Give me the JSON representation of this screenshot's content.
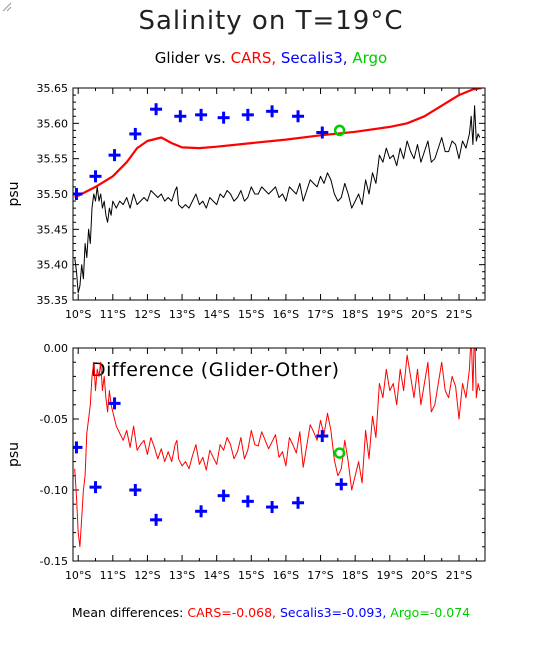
{
  "chart_data": [
    {
      "type": "line",
      "title": "Salinity on T=19°C",
      "legend": {
        "prefix": "Glider vs.",
        "entries": [
          {
            "name": "CARS",
            "color": "#ff0000"
          },
          {
            "name": "Secalis3",
            "color": "#0000ff"
          },
          {
            "name": "Argo",
            "color": "#00cc00"
          }
        ],
        "separator": ", "
      },
      "ylabel": "psu",
      "ylim": [
        35.35,
        35.65
      ],
      "yticks": [
        35.35,
        35.4,
        35.45,
        35.5,
        35.55,
        35.6,
        35.65
      ],
      "ytick_labels": [
        "35.35",
        "35.40",
        "35.45",
        "35.50",
        "35.55",
        "35.60",
        "35.65"
      ],
      "xlim": [
        9.85,
        21.75
      ],
      "xticks": [
        10,
        11,
        12,
        13,
        14,
        15,
        16,
        17,
        18,
        19,
        20,
        21
      ],
      "xtick_labels": [
        "10°S",
        "11°S",
        "12°S",
        "13°S",
        "14°S",
        "15°S",
        "16°S",
        "17°S",
        "18°S",
        "19°S",
        "20°S",
        "21°S"
      ],
      "series": [
        {
          "name": "Glider",
          "style": "line",
          "color": "#000000",
          "x": [
            9.9,
            9.95,
            10.0,
            10.05,
            10.1,
            10.15,
            10.2,
            10.25,
            10.3,
            10.35,
            10.4,
            10.45,
            10.5,
            10.55,
            10.6,
            10.65,
            10.7,
            10.75,
            10.8,
            10.85,
            10.9,
            10.95,
            11.0,
            11.1,
            11.2,
            11.3,
            11.4,
            11.5,
            11.6,
            11.7,
            11.8,
            11.9,
            12.0,
            12.1,
            12.2,
            12.3,
            12.4,
            12.5,
            12.6,
            12.7,
            12.8,
            12.85,
            12.9,
            13.0,
            13.1,
            13.2,
            13.3,
            13.4,
            13.5,
            13.6,
            13.7,
            13.8,
            13.9,
            14.0,
            14.1,
            14.2,
            14.3,
            14.4,
            14.5,
            14.6,
            14.7,
            14.8,
            14.9,
            15.0,
            15.1,
            15.2,
            15.3,
            15.4,
            15.5,
            15.6,
            15.7,
            15.8,
            15.9,
            16.0,
            16.1,
            16.2,
            16.3,
            16.4,
            16.5,
            16.6,
            16.7,
            16.8,
            16.9,
            17.0,
            17.1,
            17.2,
            17.3,
            17.4,
            17.5,
            17.6,
            17.7,
            17.8,
            17.9,
            18.0,
            18.1,
            18.2,
            18.3,
            18.4,
            18.5,
            18.6,
            18.7,
            18.8,
            18.9,
            19.0,
            19.1,
            19.2,
            19.3,
            19.4,
            19.5,
            19.6,
            19.7,
            19.8,
            19.9,
            20.0,
            20.1,
            20.2,
            20.3,
            20.4,
            20.5,
            20.6,
            20.7,
            20.8,
            20.9,
            21.0,
            21.1,
            21.2,
            21.3,
            21.35,
            21.4,
            21.45,
            21.5,
            21.55,
            21.6
          ],
          "y": [
            35.41,
            35.39,
            35.36,
            35.37,
            35.4,
            35.38,
            35.43,
            35.41,
            35.45,
            35.43,
            35.48,
            35.5,
            35.49,
            35.51,
            35.49,
            35.5,
            35.48,
            35.49,
            35.47,
            35.46,
            35.48,
            35.47,
            35.49,
            35.48,
            35.49,
            35.485,
            35.495,
            35.48,
            35.5,
            35.485,
            35.49,
            35.495,
            35.49,
            35.505,
            35.5,
            35.495,
            35.5,
            35.49,
            35.495,
            35.49,
            35.505,
            35.51,
            35.485,
            35.48,
            35.485,
            35.48,
            35.49,
            35.5,
            35.485,
            35.49,
            35.48,
            35.495,
            35.49,
            35.485,
            35.5,
            35.495,
            35.505,
            35.5,
            35.49,
            35.495,
            35.505,
            35.49,
            35.495,
            35.51,
            35.5,
            35.5,
            35.51,
            35.505,
            35.5,
            35.505,
            35.51,
            35.495,
            35.5,
            35.49,
            35.51,
            35.505,
            35.5,
            35.515,
            35.49,
            35.505,
            35.52,
            35.515,
            35.51,
            35.525,
            35.515,
            35.53,
            35.52,
            35.5,
            35.49,
            35.495,
            35.515,
            35.5,
            35.48,
            35.49,
            35.5,
            35.485,
            35.52,
            35.5,
            35.53,
            35.515,
            35.555,
            35.545,
            35.565,
            35.55,
            35.555,
            35.54,
            35.565,
            35.55,
            35.575,
            35.56,
            35.55,
            35.57,
            35.545,
            35.56,
            35.575,
            35.545,
            35.55,
            35.565,
            35.58,
            35.56,
            35.56,
            35.575,
            35.57,
            35.55,
            35.575,
            35.565,
            35.585,
            35.61,
            35.57,
            35.625,
            35.575,
            35.585,
            35.58
          ]
        },
        {
          "name": "CARS",
          "style": "line",
          "color": "#ff0000",
          "x": [
            9.9,
            10.5,
            11.0,
            11.4,
            11.7,
            12.0,
            12.4,
            12.7,
            13.0,
            13.5,
            14.0,
            15.0,
            16.0,
            17.0,
            18.0,
            19.0,
            19.5,
            20.0,
            20.5,
            21.0,
            21.4,
            21.65
          ],
          "y": [
            35.495,
            35.51,
            35.525,
            35.545,
            35.565,
            35.575,
            35.58,
            35.572,
            35.566,
            35.565,
            35.567,
            35.572,
            35.577,
            35.583,
            35.588,
            35.595,
            35.6,
            35.61,
            35.625,
            35.64,
            35.648,
            35.65
          ]
        },
        {
          "name": "Secalis3",
          "style": "marker",
          "marker": "plus",
          "color": "#0000ff",
          "x": [
            9.95,
            10.5,
            11.05,
            11.65,
            12.25,
            12.95,
            13.55,
            14.2,
            14.9,
            15.6,
            16.35,
            17.05
          ],
          "y": [
            35.5,
            35.525,
            35.555,
            35.585,
            35.62,
            35.61,
            35.612,
            35.608,
            35.612,
            35.617,
            35.61,
            35.587
          ]
        },
        {
          "name": "Argo",
          "style": "marker",
          "marker": "circle",
          "color": "#00cc00",
          "x": [
            17.55
          ],
          "y": [
            35.59
          ]
        }
      ]
    },
    {
      "type": "line",
      "annotation": "Difference (Glider-Other)",
      "ylabel": "psu",
      "ylim": [
        -0.15,
        0.0
      ],
      "yticks": [
        -0.15,
        -0.1,
        -0.05,
        0.0
      ],
      "ytick_labels": [
        "-0.15",
        "-0.10",
        "-0.05",
        "0.00"
      ],
      "xlim": [
        9.85,
        21.75
      ],
      "xticks": [
        10,
        11,
        12,
        13,
        14,
        15,
        16,
        17,
        18,
        19,
        20,
        21
      ],
      "xtick_labels": [
        "10°S",
        "11°S",
        "12°S",
        "13°S",
        "14°S",
        "15°S",
        "16°S",
        "17°S",
        "18°S",
        "19°S",
        "20°S",
        "21°S"
      ],
      "series": [
        {
          "name": "CARS",
          "style": "line",
          "color": "#ff0000",
          "x": [
            9.9,
            9.95,
            10.0,
            10.05,
            10.1,
            10.15,
            10.2,
            10.25,
            10.3,
            10.35,
            10.4,
            10.45,
            10.5,
            10.55,
            10.6,
            10.65,
            10.7,
            10.75,
            10.8,
            10.85,
            10.9,
            10.95,
            11.0,
            11.1,
            11.2,
            11.3,
            11.4,
            11.5,
            11.6,
            11.7,
            11.8,
            11.9,
            12.0,
            12.1,
            12.2,
            12.3,
            12.4,
            12.5,
            12.6,
            12.7,
            12.8,
            12.85,
            12.9,
            13.0,
            13.1,
            13.2,
            13.3,
            13.4,
            13.5,
            13.6,
            13.7,
            13.8,
            13.9,
            14.0,
            14.1,
            14.2,
            14.3,
            14.4,
            14.5,
            14.6,
            14.7,
            14.8,
            14.9,
            15.0,
            15.1,
            15.2,
            15.3,
            15.4,
            15.5,
            15.6,
            15.7,
            15.8,
            15.9,
            16.0,
            16.1,
            16.2,
            16.3,
            16.4,
            16.5,
            16.6,
            16.7,
            16.8,
            16.9,
            17.0,
            17.1,
            17.2,
            17.3,
            17.4,
            17.5,
            17.6,
            17.7,
            17.8,
            17.9,
            18.0,
            18.1,
            18.2,
            18.3,
            18.4,
            18.5,
            18.6,
            18.7,
            18.8,
            18.9,
            19.0,
            19.1,
            19.2,
            19.3,
            19.4,
            19.5,
            19.6,
            19.7,
            19.8,
            19.9,
            20.0,
            20.1,
            20.2,
            20.3,
            20.4,
            20.5,
            20.6,
            20.7,
            20.8,
            20.9,
            21.0,
            21.1,
            21.2,
            21.3,
            21.35,
            21.4,
            21.45,
            21.5,
            21.55,
            21.6
          ],
          "y": [
            -0.085,
            -0.105,
            -0.13,
            -0.14,
            -0.12,
            -0.1,
            -0.09,
            -0.06,
            -0.05,
            -0.04,
            -0.02,
            -0.01,
            -0.03,
            -0.015,
            -0.02,
            -0.01,
            -0.03,
            -0.02,
            -0.035,
            -0.045,
            -0.03,
            -0.04,
            -0.045,
            -0.055,
            -0.06,
            -0.065,
            -0.058,
            -0.07,
            -0.055,
            -0.072,
            -0.068,
            -0.065,
            -0.075,
            -0.063,
            -0.07,
            -0.078,
            -0.071,
            -0.08,
            -0.073,
            -0.08,
            -0.068,
            -0.065,
            -0.078,
            -0.083,
            -0.08,
            -0.085,
            -0.076,
            -0.068,
            -0.082,
            -0.077,
            -0.086,
            -0.072,
            -0.077,
            -0.082,
            -0.068,
            -0.072,
            -0.063,
            -0.068,
            -0.078,
            -0.073,
            -0.063,
            -0.078,
            -0.072,
            -0.058,
            -0.068,
            -0.069,
            -0.059,
            -0.065,
            -0.071,
            -0.066,
            -0.061,
            -0.077,
            -0.073,
            -0.083,
            -0.063,
            -0.068,
            -0.074,
            -0.059,
            -0.084,
            -0.069,
            -0.054,
            -0.059,
            -0.065,
            -0.051,
            -0.061,
            -0.046,
            -0.058,
            -0.079,
            -0.09,
            -0.085,
            -0.065,
            -0.08,
            -0.1,
            -0.09,
            -0.08,
            -0.095,
            -0.058,
            -0.078,
            -0.048,
            -0.063,
            -0.025,
            -0.035,
            -0.015,
            -0.03,
            -0.025,
            -0.04,
            -0.015,
            -0.03,
            -0.005,
            -0.02,
            -0.035,
            -0.015,
            -0.04,
            -0.025,
            -0.01,
            -0.045,
            -0.04,
            -0.025,
            -0.01,
            -0.03,
            -0.035,
            -0.02,
            -0.027,
            -0.05,
            -0.025,
            -0.035,
            -0.015,
            0.01,
            -0.03,
            0.015,
            -0.035,
            -0.025,
            -0.03
          ]
        },
        {
          "name": "Secalis3",
          "style": "marker",
          "marker": "plus",
          "color": "#0000ff",
          "x": [
            9.95,
            10.5,
            11.05,
            11.65,
            12.25,
            13.55,
            14.2,
            14.9,
            15.6,
            16.35,
            17.05,
            17.6
          ],
          "y": [
            -0.07,
            -0.098,
            -0.039,
            -0.1,
            -0.121,
            -0.115,
            -0.104,
            -0.108,
            -0.112,
            -0.109,
            -0.062,
            -0.096
          ]
        },
        {
          "name": "Argo",
          "style": "marker",
          "marker": "circle",
          "color": "#00cc00",
          "x": [
            17.55
          ],
          "y": [
            -0.074
          ]
        }
      ]
    }
  ],
  "summary": {
    "prefix": "Mean differences:",
    "items": [
      {
        "text": "CARS=-0.068",
        "color": "#ff0000"
      },
      {
        "text": "Secalis3=-0.093",
        "color": "#0000ff"
      },
      {
        "text": "Argo=-0.074",
        "color": "#00cc00"
      }
    ],
    "separator": ", "
  }
}
